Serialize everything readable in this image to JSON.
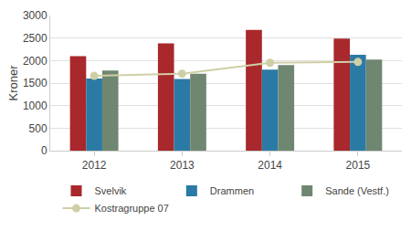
{
  "chart_data": {
    "type": "bar",
    "y_label": "Kroner",
    "categories": [
      "2012",
      "2013",
      "2014",
      "2015"
    ],
    "series": [
      {
        "name": "Svelvik",
        "type": "bar",
        "color": "#a8282c",
        "values": [
          2100,
          2380,
          2680,
          2490
        ]
      },
      {
        "name": "Drammen",
        "type": "bar",
        "color": "#2b7aa5",
        "values": [
          1600,
          1590,
          1800,
          2130
        ]
      },
      {
        "name": "Sande (Vestf.)",
        "type": "bar",
        "color": "#6f8770",
        "values": [
          1780,
          1710,
          1900,
          2020
        ]
      },
      {
        "name": "Kostragruppe 07",
        "type": "line",
        "color": "#cfcfa6",
        "marker": "circle",
        "values": [
          1660,
          1710,
          1950,
          1970
        ]
      }
    ],
    "ylim": [
      0,
      3000
    ],
    "yticks": [
      0,
      500,
      1000,
      1500,
      2000,
      2500,
      3000
    ],
    "grid": true,
    "legend": "bottom"
  }
}
